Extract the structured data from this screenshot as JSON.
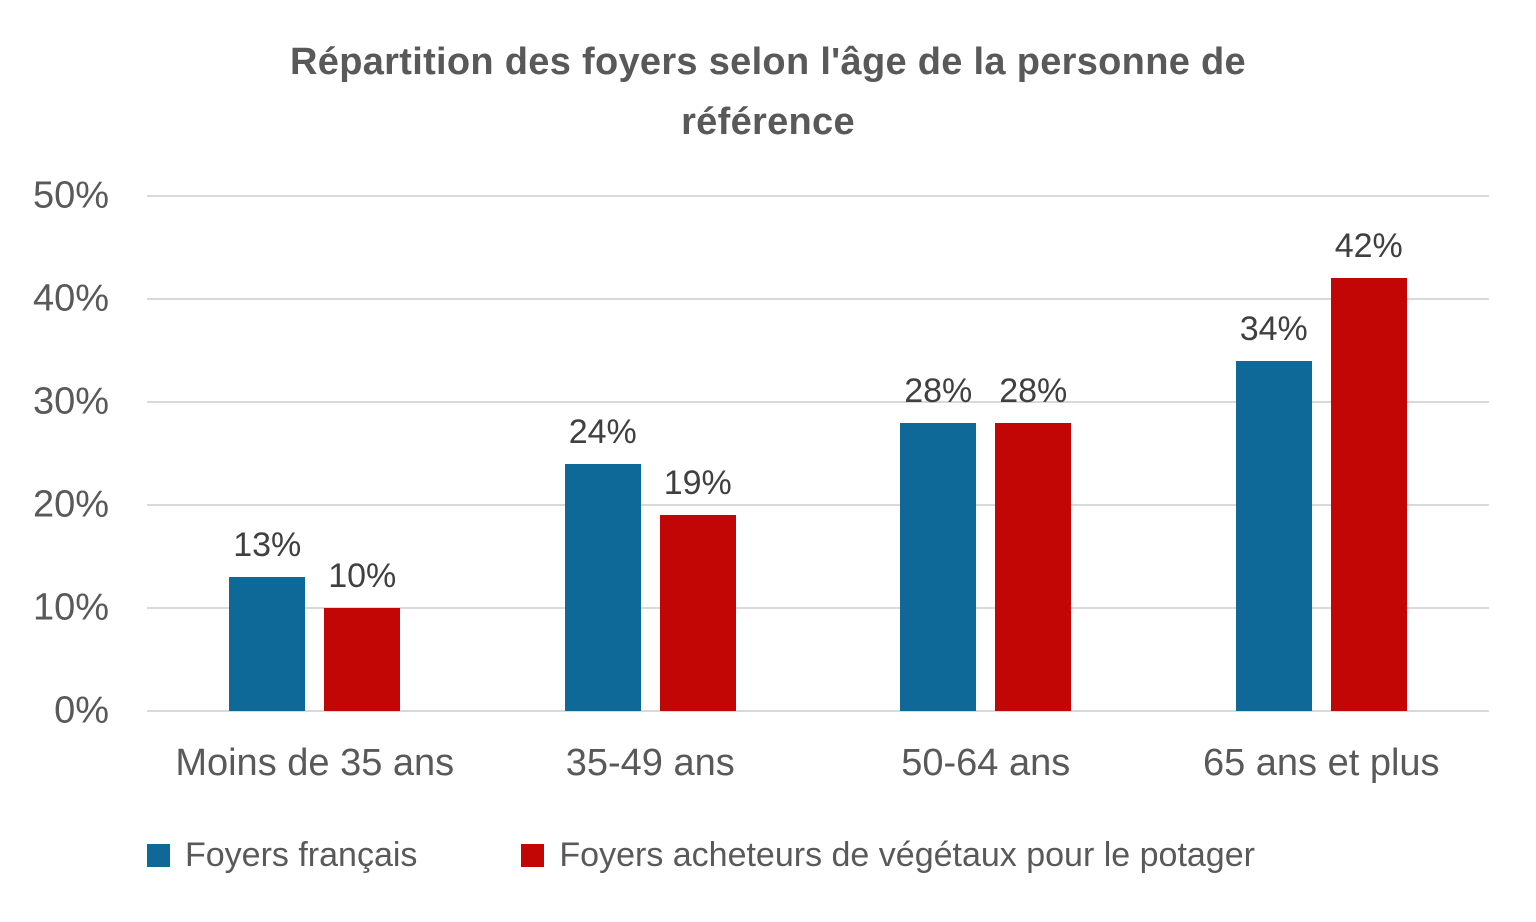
{
  "title": {
    "full": "Répartition des foyers selon l'âge de la personne de référence",
    "line1": "Répartition des foyers selon l'âge de la personne de",
    "line2": "référence"
  },
  "colors": {
    "series_blue": "#0E6898",
    "series_red": "#C20505",
    "title_text": "#595959",
    "axis_text": "#595959",
    "data_label_text": "#404040",
    "gridline": "#D9D9D9",
    "background": "#FFFFFF"
  },
  "chart_data": {
    "type": "bar",
    "title": "Répartition des foyers selon l'âge de la personne de référence",
    "categories": [
      "Moins de 35 ans",
      "35-49 ans",
      "50-64 ans",
      "65 ans et plus"
    ],
    "series": [
      {
        "name": "Foyers français",
        "color": "#0E6898",
        "values": [
          13,
          24,
          28,
          34
        ],
        "data_labels": [
          "13%",
          "24%",
          "28%",
          "34%"
        ]
      },
      {
        "name": "Foyers acheteurs de végétaux pour le potager",
        "color": "#C20505",
        "values": [
          10,
          19,
          28,
          42
        ],
        "data_labels": [
          "10%",
          "19%",
          "28%",
          "42%"
        ]
      }
    ],
    "y_axis": {
      "min": 0,
      "max": 50,
      "unit": "%",
      "tick_values": [
        0,
        10,
        20,
        30,
        40,
        50
      ],
      "tick_labels": [
        "0%",
        "10%",
        "20%",
        "30%",
        "40%",
        "50%"
      ]
    },
    "grid": true,
    "legend_position": "bottom"
  }
}
